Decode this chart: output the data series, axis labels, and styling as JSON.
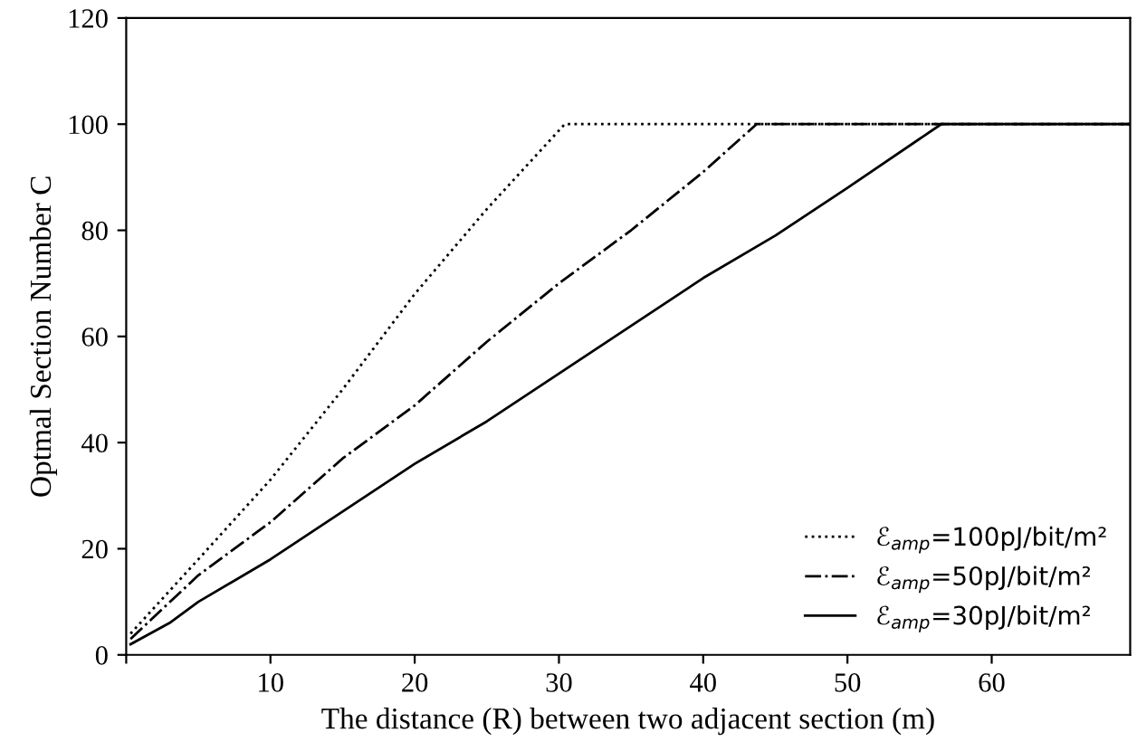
{
  "chart_data": {
    "type": "line",
    "xlabel": "The distance (R) between two adjacent section (m)",
    "ylabel": "Optmal Section Number C",
    "xlim": [
      0,
      69.6
    ],
    "ylim": [
      0,
      120
    ],
    "xticks": [
      {
        "value": 0,
        "label": null
      },
      10,
      20,
      30,
      40,
      50,
      60
    ],
    "yticks": [
      0,
      20,
      40,
      60,
      80,
      100,
      120
    ],
    "grid": false,
    "legend": "bottom right",
    "series": [
      {
        "name": "ℰ$_{amp}$=100pJ/bit/m²",
        "color": "#000000",
        "line_style": "dotted",
        "x": [
          0.3,
          5,
          10,
          15,
          20,
          25,
          30.4,
          69.6
        ],
        "values": [
          4,
          18,
          33,
          50,
          68,
          84,
          100,
          100
        ]
      },
      {
        "name": "ℰ$_{amp}$=50pJ/bit/m²",
        "color": "#000000",
        "line_style": "dashdot",
        "x": [
          0.3,
          5,
          10,
          15,
          20,
          25,
          30,
          35,
          40,
          43.7,
          69.6
        ],
        "values": [
          3,
          15,
          25,
          37,
          47,
          59,
          70,
          80,
          91,
          100,
          100
        ]
      },
      {
        "name": "ℰ$_{amp}$=30pJ/bit/m²",
        "color": "#000000",
        "line_style": "solid",
        "x": [
          0.3,
          3,
          5,
          10,
          15,
          20,
          25,
          30,
          35,
          40,
          45,
          50,
          56.5,
          69.6
        ],
        "values": [
          2,
          6,
          10,
          18,
          27,
          36,
          44,
          53,
          62,
          71,
          79,
          88,
          100,
          100
        ]
      }
    ]
  }
}
